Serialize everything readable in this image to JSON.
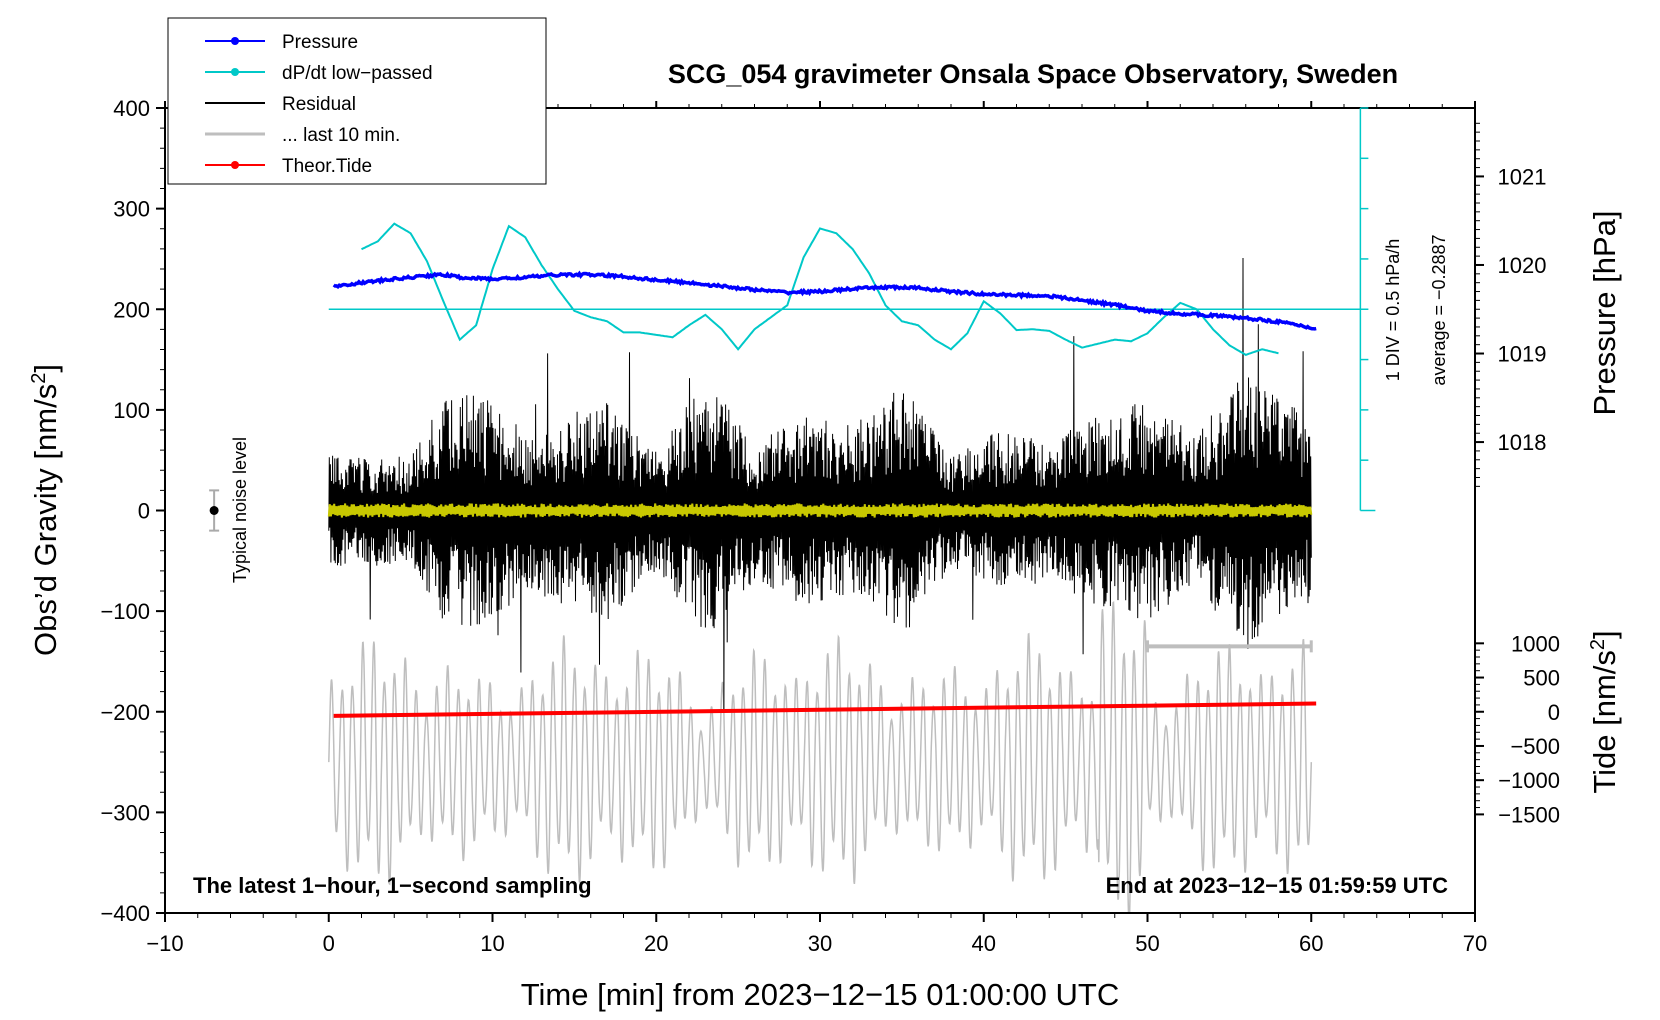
{
  "chart_data": {
    "type": "line",
    "title": "SCG_054 gravimeter Onsala Space Observatory, Sweden",
    "xlabel": "Time [min] from 2023−12−15 01:00:00 UTC",
    "ylabel_left": "Obs’d Gravity [nm/s",
    "ylabel_left_sup": "2",
    "ylabel_left_end": "]",
    "ylabel_right_top": "Pressure [hPa]",
    "ylabel_right_bottom": "Tide [nm/s",
    "ylabel_right_bottom_sup": "2",
    "ylabel_right_bottom_end": "]",
    "xlim": [
      -10,
      70
    ],
    "ylim_left": [
      -400,
      400
    ],
    "x_ticks": [
      -10,
      0,
      10,
      20,
      30,
      40,
      50,
      60,
      70
    ],
    "x_tick_labels": [
      "−10",
      "0",
      "10",
      "20",
      "30",
      "40",
      "50",
      "60",
      "70"
    ],
    "y_left_ticks": [
      -400,
      -300,
      -200,
      -100,
      0,
      100,
      200,
      300,
      400
    ],
    "y_left_tick_labels": [
      "−400",
      "−300",
      "−200",
      "−100",
      "0",
      "100",
      "200",
      "300",
      "400"
    ],
    "y_pressure_ticks": [
      1018,
      1019,
      1020,
      1021
    ],
    "y_pressure_tick_labels": [
      "1018",
      "1019",
      "1020",
      "1021"
    ],
    "y_pressure_ref": {
      "hpa": 1019.5,
      "gravity": 200
    },
    "y_tide_ticks": [
      -1500,
      -1000,
      -500,
      0,
      500,
      1000
    ],
    "y_tide_tick_labels": [
      "−1500",
      "−1000",
      "−500",
      "0",
      "500",
      "1000"
    ],
    "y_tide_ref": [
      {
        "tide": 0,
        "gravity": -200
      },
      {
        "tide": 1000,
        "gravity": -132
      }
    ],
    "legend": [
      {
        "label": "Pressure",
        "color": "#0000ff",
        "marker": true
      },
      {
        "label": "dP/dt low−passed",
        "color": "#00c8c8",
        "marker": true
      },
      {
        "label": "Residual",
        "color": "#000000",
        "marker": false
      },
      {
        "label": "... last 10 min.",
        "color": "#bebebe",
        "marker": false
      },
      {
        "label": "Theor.Tide",
        "color": "#ff0000",
        "marker": true
      }
    ],
    "series": [
      {
        "name": "Pressure",
        "color": "#0000ff",
        "unit": "hPa",
        "x": [
          0.3,
          2,
          4,
          6,
          7,
          8,
          10,
          12,
          14,
          16,
          18,
          20,
          22,
          24,
          26,
          28,
          30,
          32,
          34,
          36,
          38,
          40,
          42,
          44,
          46,
          48,
          50,
          52,
          54,
          56,
          58,
          60.3
        ],
        "y": [
          1019.76,
          1019.8,
          1019.84,
          1019.88,
          1019.89,
          1019.86,
          1019.84,
          1019.86,
          1019.89,
          1019.89,
          1019.87,
          1019.83,
          1019.8,
          1019.76,
          1019.72,
          1019.69,
          1019.7,
          1019.73,
          1019.75,
          1019.74,
          1019.7,
          1019.67,
          1019.66,
          1019.65,
          1019.6,
          1019.55,
          1019.48,
          1019.45,
          1019.43,
          1019.4,
          1019.36,
          1019.28
        ]
      },
      {
        "name": "dP/dt low−passed",
        "color": "#00c8c8",
        "unit": "hPa/h",
        "x": [
          2.0,
          3.0,
          4.0,
          5.0,
          6.0,
          7.0,
          8.0,
          9.0,
          10.0,
          11.0,
          12.0,
          13.0,
          14.0,
          15.0,
          16.0,
          17.0,
          18.0,
          19.0,
          20.0,
          21.0,
          22.0,
          23.0,
          24.0,
          25.0,
          26.0,
          27.0,
          28.0,
          29.0,
          30.0,
          31.0,
          32.0,
          33.0,
          34.0,
          35.0,
          36.0,
          37.0,
          38.0,
          39.0,
          40.0,
          41.0,
          42.0,
          43.0,
          44.0,
          45.0,
          46.0,
          47.0,
          48.0,
          49.0,
          50.0,
          51.0,
          52.0,
          53.0,
          54.0,
          55.0,
          56.0,
          57.0,
          58.0
        ],
        "y": [
          0.75,
          0.85,
          1.07,
          0.95,
          0.6,
          0.1,
          -0.38,
          -0.2,
          0.5,
          1.04,
          0.9,
          0.55,
          0.25,
          -0.02,
          -0.1,
          -0.15,
          -0.29,
          -0.29,
          -0.32,
          -0.35,
          -0.2,
          -0.07,
          -0.25,
          -0.5,
          -0.25,
          -0.1,
          0.05,
          0.65,
          1.01,
          0.95,
          0.75,
          0.45,
          0.05,
          -0.15,
          -0.2,
          -0.38,
          -0.5,
          -0.3,
          0.1,
          -0.05,
          -0.26,
          -0.25,
          -0.27,
          -0.38,
          -0.48,
          -0.43,
          -0.38,
          -0.4,
          -0.3,
          -0.1,
          0.08,
          0.0,
          -0.25,
          -0.45,
          -0.57,
          -0.5,
          -0.55
        ]
      },
      {
        "name": "Residual",
        "color": "#000000",
        "unit": "nm/s2",
        "x_range": [
          0,
          60
        ],
        "envelope_segments_min": [
          0,
          5,
          7,
          9,
          12,
          17,
          20,
          23,
          26,
          29,
          32,
          35,
          38,
          41,
          44,
          47,
          50,
          53,
          56,
          60
        ],
        "envelope_nm_s2": [
          55,
          55,
          110,
          120,
          80,
          110,
          60,
          130,
          70,
          95,
          85,
          130,
          55,
          80,
          70,
          95,
          110,
          75,
          140,
          90
        ]
      },
      {
        "name": "... last 10 min.",
        "color": "#bebebe",
        "unit": "nm/s2 (expanded, shown on gravity axis)",
        "x_range": [
          0,
          60
        ],
        "scale_bar_min": [
          50,
          60
        ],
        "scale_bar_nm_s2": -135
      },
      {
        "name": "Theor.Tide",
        "color": "#ff0000",
        "unit": "nm/s2",
        "x": [
          0.3,
          60.3
        ],
        "y": [
          -60,
          120
        ]
      }
    ],
    "noise_level": {
      "label": "Typical noise level",
      "x": -7,
      "value": 0,
      "range": [
        -20,
        20
      ]
    },
    "dpdt_axis": {
      "label_1": "1 DIV = 0.5 hPa/h",
      "label_2": "average = −0.2887",
      "x": 63,
      "divisions": 8
    },
    "footer_left": "The latest 1−hour, 1−second sampling",
    "footer_right": "End at 2023−12−15 01:59:59 UTC"
  }
}
